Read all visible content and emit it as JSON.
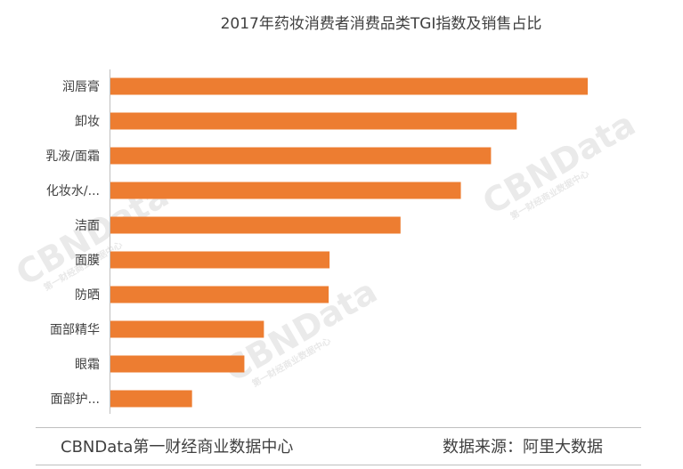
{
  "chart_data": {
    "type": "bar",
    "orientation": "horizontal",
    "title": "2017年药妆消费者消费品类TGI指数及销售占比",
    "categories": [
      "润唇膏",
      "卸妆",
      "乳液/面霜",
      "化妆水/...",
      "洁面",
      "面膜",
      "防晒",
      "面部精华",
      "眼霜",
      "面部护..."
    ],
    "values": [
      538,
      458,
      429,
      395,
      327,
      247,
      246,
      173,
      151,
      92
    ],
    "xlim": [
      0,
      540
    ],
    "grid": false,
    "legend": "none",
    "bar_color": "#ED7D31"
  },
  "watermarks": [
    "CBNData",
    "第一财经商业数据中心"
  ],
  "footer": {
    "left": "CBNData第一财经商业数据中心",
    "right": "数据来源：阿里大数据"
  }
}
